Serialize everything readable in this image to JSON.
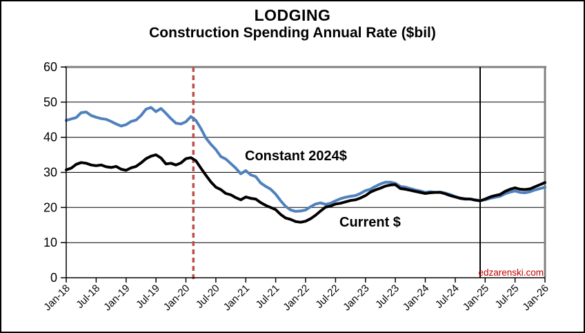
{
  "watermark": {
    "text": "edzarenski.com",
    "color": "#C00000"
  },
  "chart_data": {
    "type": "line",
    "title": "LODGING",
    "subtitle": "Construction Spending Annual Rate ($bil)",
    "xlabel": "",
    "ylabel": "",
    "ylim": [
      0,
      60
    ],
    "y_ticks": [
      0,
      10,
      20,
      30,
      40,
      50,
      60
    ],
    "grid": "horizontal",
    "legend_position": "inline-annotations",
    "x_start": "Jan-18",
    "x_end": "Jan-26",
    "x_step": "1 month",
    "x_tick_labels": [
      "Jan-18",
      "Jul-18",
      "Jan-19",
      "Jul-19",
      "Jan-20",
      "Jul-20",
      "Jan-21",
      "Jul-21",
      "Jan-22",
      "Jul-22",
      "Jan-23",
      "Jul-23",
      "Jan-24",
      "Jul-24",
      "Jan-25",
      "Jul-25",
      "Jan-26"
    ],
    "series": [
      {
        "name": "Constant 2024$",
        "color": "#4F81BD",
        "values": [
          44.8,
          45.2,
          45.6,
          47.0,
          47.2,
          46.2,
          45.7,
          45.3,
          45.1,
          44.5,
          43.8,
          43.2,
          43.6,
          44.5,
          44.9,
          46.2,
          48.0,
          48.5,
          47.3,
          48.2,
          46.8,
          45.3,
          44.0,
          43.8,
          44.4,
          45.9,
          44.8,
          42.5,
          39.8,
          38.0,
          36.5,
          34.5,
          33.8,
          32.5,
          31.2,
          29.6,
          30.5,
          29.3,
          28.8,
          27.0,
          26.0,
          25.2,
          23.8,
          21.9,
          20.3,
          19.3,
          18.9,
          19.0,
          19.3,
          20.2,
          21.0,
          21.3,
          20.9,
          21.2,
          21.9,
          22.5,
          22.9,
          23.2,
          23.4,
          24.0,
          24.8,
          25.2,
          26.0,
          26.7,
          27.2,
          27.2,
          26.9,
          26.0,
          25.8,
          25.4,
          25.0,
          24.7,
          24.3,
          24.5,
          24.3,
          24.4,
          24.1,
          23.7,
          23.1,
          22.7,
          22.5,
          22.4,
          22.2,
          22.0,
          22.2,
          22.6,
          22.9,
          23.2,
          23.9,
          24.4,
          24.7,
          24.3,
          24.2,
          24.5,
          25.0,
          25.4,
          25.8
        ]
      },
      {
        "name": "Current $",
        "color": "#000000",
        "values": [
          30.7,
          31.2,
          32.3,
          32.8,
          32.6,
          32.1,
          31.9,
          32.1,
          31.6,
          31.4,
          31.7,
          30.9,
          30.6,
          31.3,
          31.7,
          32.7,
          33.9,
          34.6,
          35.0,
          34.1,
          32.4,
          32.6,
          32.1,
          32.7,
          33.9,
          34.2,
          33.3,
          31.2,
          29.2,
          27.3,
          25.8,
          25.1,
          24.0,
          23.6,
          22.8,
          22.2,
          23.0,
          22.6,
          22.4,
          21.4,
          20.6,
          20.0,
          19.4,
          18.0,
          17.0,
          16.6,
          16.0,
          15.8,
          16.1,
          16.8,
          17.8,
          19.0,
          20.1,
          20.4,
          21.0,
          21.2,
          21.6,
          22.0,
          22.2,
          22.7,
          23.4,
          24.4,
          25.0,
          25.5,
          26.1,
          26.4,
          26.5,
          25.4,
          25.2,
          24.9,
          24.6,
          24.3,
          24.0,
          24.2,
          24.3,
          24.3,
          23.9,
          23.4,
          23.0,
          22.6,
          22.4,
          22.4,
          22.1,
          21.9,
          22.4,
          23.0,
          23.4,
          23.7,
          24.6,
          25.2,
          25.6,
          25.2,
          25.1,
          25.3,
          25.9,
          26.5,
          27.1
        ]
      }
    ],
    "vlines": [
      {
        "name": "recession-start-marker",
        "month_index": 25.5,
        "at_label": "Mar-20",
        "style": "dashed",
        "color": "#C0504D"
      },
      {
        "name": "data-end-marker",
        "month_index": 83,
        "at_label": "Dec-24",
        "style": "solid",
        "color": "#000000"
      }
    ]
  }
}
